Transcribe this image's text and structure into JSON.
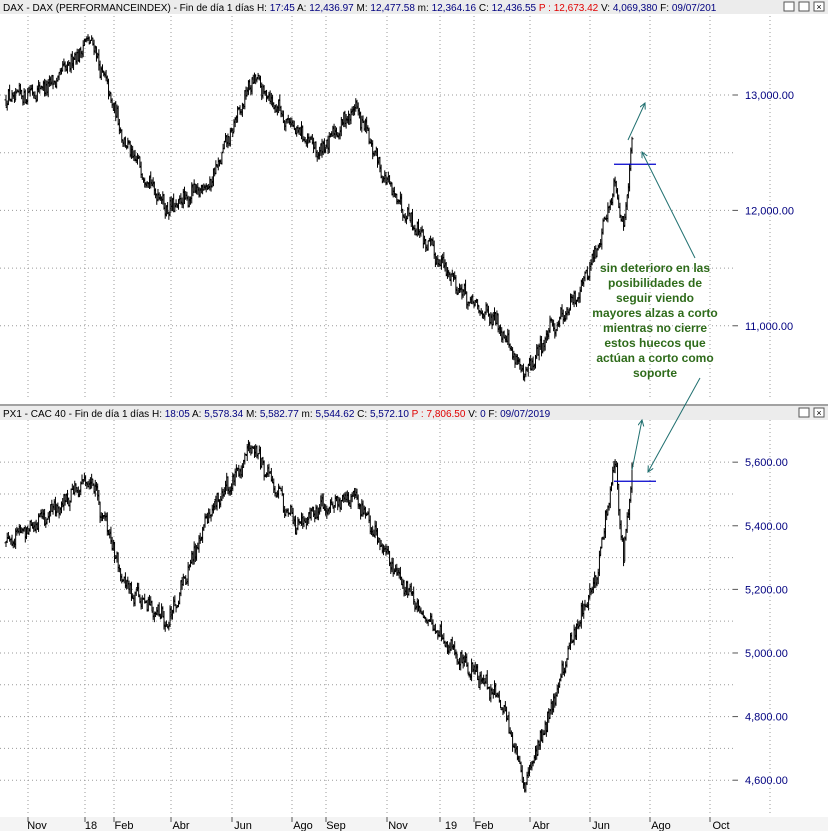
{
  "colors": {
    "header_value": "#000080",
    "header_highlight": "#e00000",
    "bar": "#000000",
    "grid": "#9a9a9a",
    "annotation": "#2e6b1a",
    "arrow": "#1f6f6f",
    "gap_line": "#0000cc"
  },
  "panels": [
    {
      "header": [
        {
          "t": "DAX - DAX (PERFORMANCEINDEX) - Fin de día 1 días  ",
          "c": "label"
        },
        {
          "t": "H: ",
          "c": "label"
        },
        {
          "t": "17:45",
          "c": "value"
        },
        {
          "t": "  A: ",
          "c": "label"
        },
        {
          "t": "12,436.97",
          "c": "value"
        },
        {
          "t": "  M: ",
          "c": "label"
        },
        {
          "t": "12,477.58",
          "c": "value"
        },
        {
          "t": "  m: ",
          "c": "label"
        },
        {
          "t": "12,364.16",
          "c": "value"
        },
        {
          "t": "  C: ",
          "c": "label"
        },
        {
          "t": "12,436.55",
          "c": "value"
        },
        {
          "t": "  P : ",
          "c": "highlight"
        },
        {
          "t": "12,673.42",
          "c": "highlight"
        },
        {
          "t": "  V: ",
          "c": "label"
        },
        {
          "t": "4,069,380",
          "c": "value"
        },
        {
          "t": "  F: ",
          "c": "label"
        },
        {
          "t": "09/07/201",
          "c": "value"
        }
      ],
      "ylim": [
        10400,
        13650
      ],
      "yticks": [
        {
          "v": 11000,
          "l": "11,000.00"
        },
        {
          "v": 12000,
          "l": "12,000.00"
        },
        {
          "v": 13000,
          "l": "13,000.00"
        }
      ],
      "gap_level": 12400
    },
    {
      "header": [
        {
          "t": "PX1 - CAC 40 - Fin de día 1 días  ",
          "c": "label"
        },
        {
          "t": "H: ",
          "c": "label"
        },
        {
          "t": "18:05",
          "c": "value"
        },
        {
          "t": "  A: ",
          "c": "label"
        },
        {
          "t": "5,578.34",
          "c": "value"
        },
        {
          "t": "  M: ",
          "c": "label"
        },
        {
          "t": "5,582.77",
          "c": "value"
        },
        {
          "t": "  m: ",
          "c": "label"
        },
        {
          "t": "5,544.62",
          "c": "value"
        },
        {
          "t": "  C: ",
          "c": "label"
        },
        {
          "t": "5,572.10",
          "c": "value"
        },
        {
          "t": "  P : ",
          "c": "highlight"
        },
        {
          "t": "7,806.50",
          "c": "highlight"
        },
        {
          "t": "  V: ",
          "c": "label"
        },
        {
          "t": "0",
          "c": "value"
        },
        {
          "t": "  F: ",
          "c": "label"
        },
        {
          "t": "09/07/2019",
          "c": "value"
        }
      ],
      "ylim": [
        4500,
        5720
      ],
      "yticks": [
        {
          "v": 4600,
          "l": "4,600.00"
        },
        {
          "v": 4800,
          "l": "4,800.00"
        },
        {
          "v": 5000,
          "l": "5,000.00"
        },
        {
          "v": 5200,
          "l": "5,200.00"
        },
        {
          "v": 5400,
          "l": "5,400.00"
        },
        {
          "v": 5600,
          "l": "5,600.00"
        }
      ],
      "gap_level": 5540
    }
  ],
  "xaxis": [
    "Nov",
    "18",
    "Feb",
    "Abr",
    "Jun",
    "Ago",
    "Sep",
    "Nov",
    "19",
    "Feb",
    "Abr",
    "Jun",
    "Ago",
    "Oct"
  ],
  "annotation": [
    "sin deterioro en las",
    "posibilidades de",
    "seguir viendo",
    "mayores alzas a corto",
    "mientras no cierre",
    "estos huecos que",
    "actúan a corto como",
    "soporte"
  ],
  "chart_data": [
    {
      "type": "line",
      "title": "DAX - DAX (PERFORMANCEINDEX)",
      "x": [
        "2017-10",
        "2017-12",
        "2018-01",
        "2018-02",
        "2018-03",
        "2018-04",
        "2018-05",
        "2018-06",
        "2018-07",
        "2018-08",
        "2018-09",
        "2018-10",
        "2018-11",
        "2018-12",
        "2018-12-27",
        "2019-01",
        "2019-02",
        "2019-03",
        "2019-04",
        "2019-05",
        "2019-06",
        "2019-07"
      ],
      "series": [
        {
          "values": [
            12950,
            13100,
            13500,
            12550,
            12000,
            12250,
            13150,
            12700,
            12500,
            12900,
            12250,
            11700,
            11200,
            11000,
            10550,
            10950,
            11200,
            11650,
            12250,
            11850,
            12250,
            12640
          ]
        }
      ],
      "ylim": [
        10400,
        13650
      ]
    },
    {
      "type": "line",
      "title": "PX1 - CAC 40",
      "x": [
        "2017-10",
        "2017-12",
        "2018-01",
        "2018-02",
        "2018-03",
        "2018-04",
        "2018-05",
        "2018-06",
        "2018-07",
        "2018-08",
        "2018-09",
        "2018-10",
        "2018-11",
        "2018-12",
        "2018-12-27",
        "2019-01",
        "2019-02",
        "2019-03",
        "2019-04",
        "2019-05",
        "2019-06",
        "2019-07"
      ],
      "series": [
        {
          "values": [
            5350,
            5450,
            5550,
            5200,
            5100,
            5450,
            5650,
            5400,
            5450,
            5500,
            5300,
            5100,
            4950,
            4850,
            4590,
            4800,
            5050,
            5250,
            5600,
            5300,
            5450,
            5600
          ]
        }
      ],
      "ylim": [
        4500,
        5720
      ]
    }
  ]
}
